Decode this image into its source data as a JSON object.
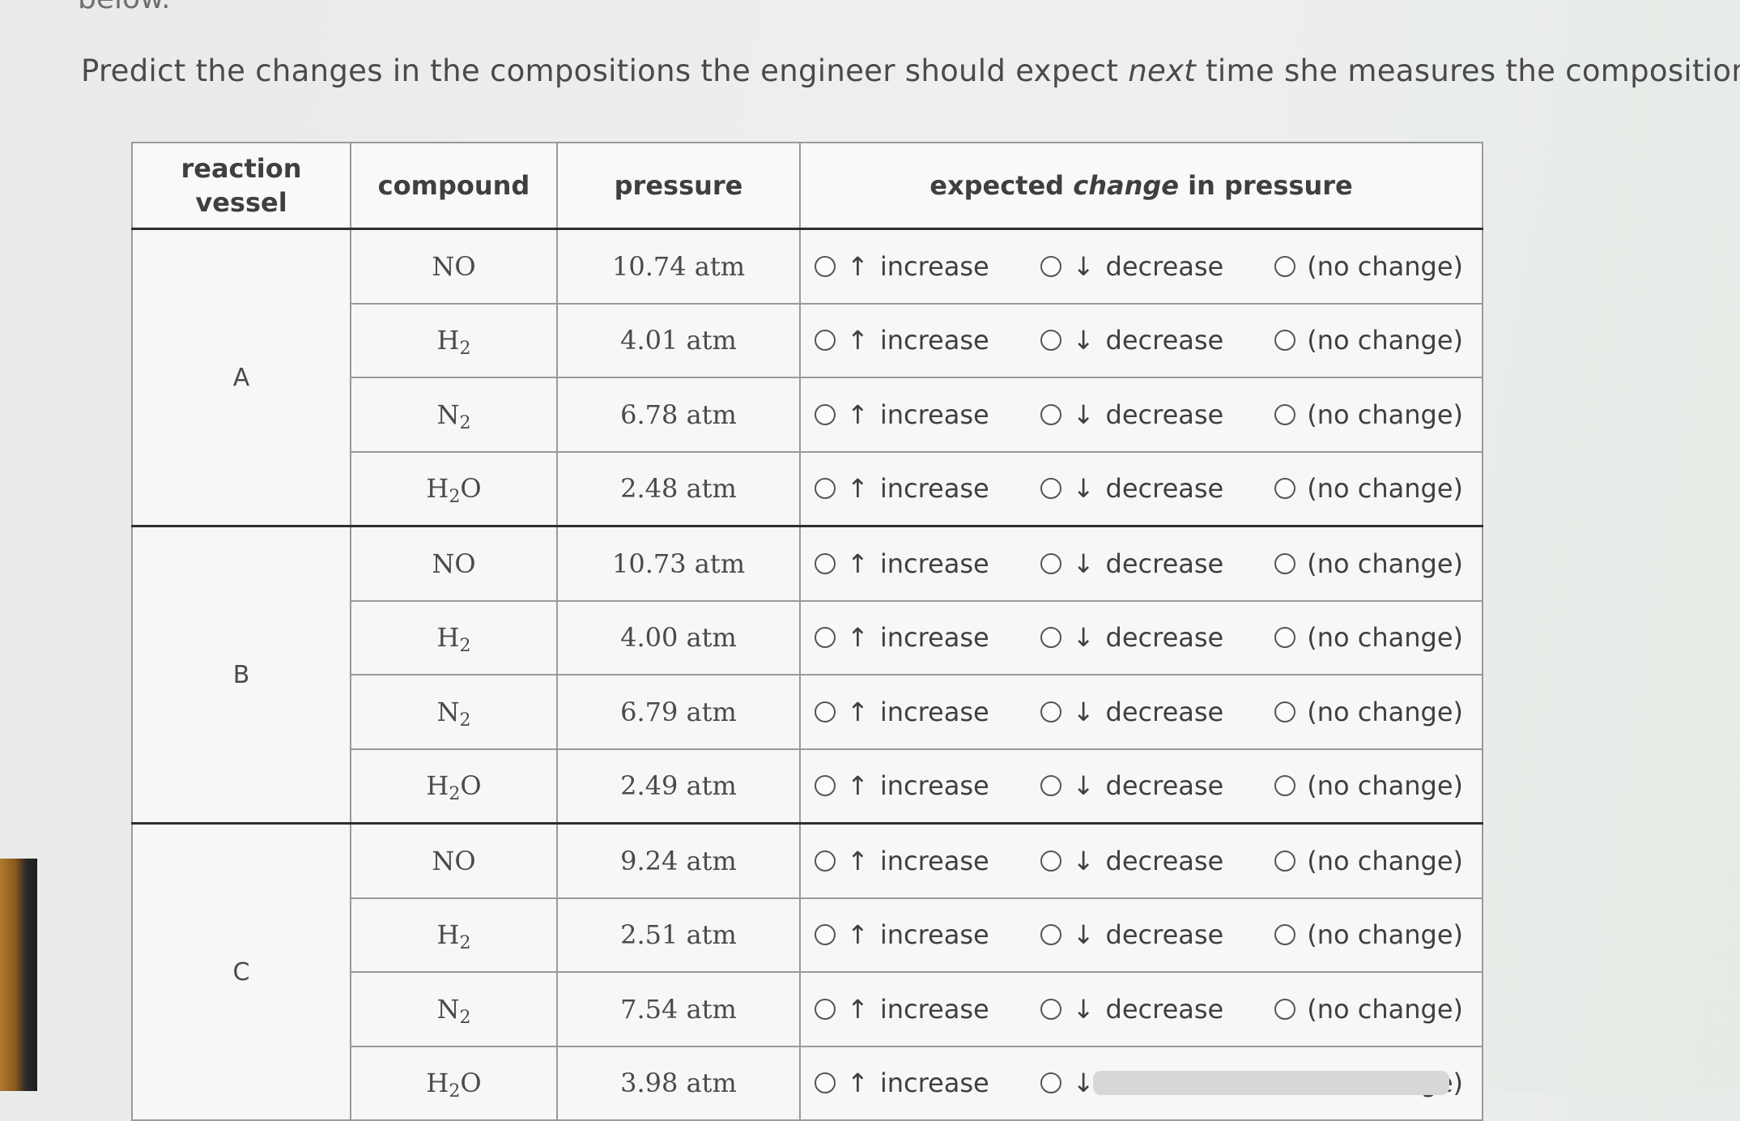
{
  "page": {
    "cut_text": "below.",
    "prompt_before": "Predict the changes in the compositions the engineer should expect ",
    "prompt_emphasis": "next",
    "prompt_after": " time she measures the compositions."
  },
  "table": {
    "headers": {
      "vessel": "reaction vessel",
      "compound": "compound",
      "pressure": "pressure",
      "change_before": "expected ",
      "change_emphasis": "change",
      "change_after": " in pressure"
    },
    "options": {
      "increase_arrow": "↑",
      "increase": "increase",
      "decrease_arrow": "↓",
      "decrease": "decrease",
      "no_change": "(no change)"
    },
    "groups": [
      {
        "vessel": "A",
        "rows": [
          {
            "compound": "NO",
            "sub": "",
            "tail": "",
            "pressure": "10.74 atm"
          },
          {
            "compound": "H",
            "sub": "2",
            "tail": "",
            "pressure": "4.01 atm"
          },
          {
            "compound": "N",
            "sub": "2",
            "tail": "",
            "pressure": "6.78 atm"
          },
          {
            "compound": "H",
            "sub": "2",
            "tail": "O",
            "pressure": "2.48 atm"
          }
        ]
      },
      {
        "vessel": "B",
        "rows": [
          {
            "compound": "NO",
            "sub": "",
            "tail": "",
            "pressure": "10.73 atm"
          },
          {
            "compound": "H",
            "sub": "2",
            "tail": "",
            "pressure": "4.00 atm"
          },
          {
            "compound": "N",
            "sub": "2",
            "tail": "",
            "pressure": "6.79 atm"
          },
          {
            "compound": "H",
            "sub": "2",
            "tail": "O",
            "pressure": "2.49 atm"
          }
        ]
      },
      {
        "vessel": "C",
        "rows": [
          {
            "compound": "NO",
            "sub": "",
            "tail": "",
            "pressure": "9.24 atm"
          },
          {
            "compound": "H",
            "sub": "2",
            "tail": "",
            "pressure": "2.51 atm"
          },
          {
            "compound": "N",
            "sub": "2",
            "tail": "",
            "pressure": "7.54 atm"
          },
          {
            "compound": "H",
            "sub": "2",
            "tail": "O",
            "pressure": "3.98 atm"
          }
        ]
      }
    ]
  }
}
